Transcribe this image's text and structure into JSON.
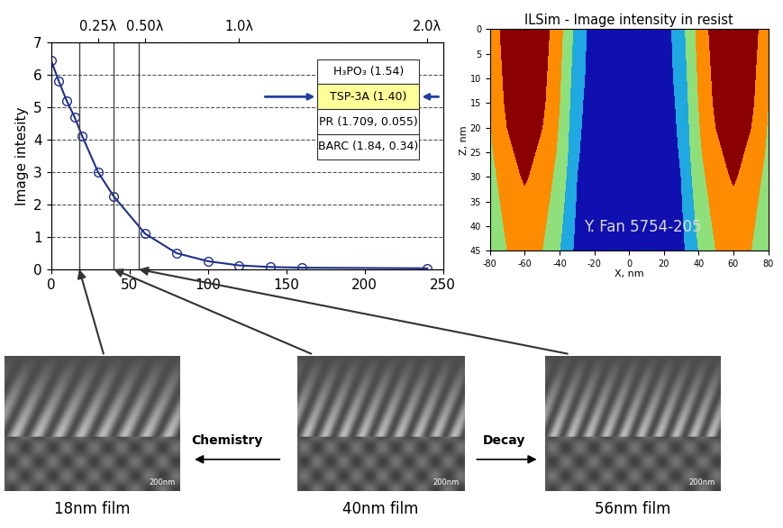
{
  "chart_data": [
    {
      "type": "line",
      "y_label": "Image intesity",
      "x": [
        0,
        5,
        10,
        15,
        20,
        30,
        40,
        60,
        80,
        100,
        120,
        140,
        160,
        240
      ],
      "values": [
        6.45,
        5.8,
        5.2,
        4.7,
        4.1,
        3.0,
        2.25,
        1.1,
        0.5,
        0.25,
        0.12,
        0.07,
        0.05,
        0.03
      ],
      "color": "#1f2f8f",
      "marker": "circle",
      "line_style": "solid",
      "xlim": [
        0,
        250
      ],
      "xticks": [
        0,
        50,
        100,
        150,
        200,
        250
      ],
      "ylim": [
        0,
        7
      ],
      "yticks": [
        0,
        1,
        2,
        3,
        4,
        5,
        6,
        7
      ],
      "grid": true,
      "top_ticks": [
        {
          "value": 30,
          "label": "0.25λ"
        },
        {
          "value": 60,
          "label": "0.50λ"
        },
        {
          "value": 120,
          "label": "1.0λ"
        },
        {
          "value": 240,
          "label": "2.0λ"
        }
      ],
      "vlines": [
        18,
        40,
        56
      ],
      "layers": [
        {
          "label": "H₃PO₃ (1.54)",
          "color": "#ffffff"
        },
        {
          "label": "TSP-3A (1.40)",
          "color": "#ffff99"
        },
        {
          "label": "PR (1.709, 0.055)",
          "color": "#ffffff"
        },
        {
          "label": "BARC (1.84, 0.34)",
          "color": "#ffffff"
        }
      ]
    },
    {
      "type": "contour",
      "title": "ILSim - Image intensity in resist",
      "x_label": "X, nm",
      "y_label": "Z, nm",
      "x": [
        -80,
        -70,
        -60,
        -50,
        -40,
        -30,
        -20,
        -10,
        0,
        10,
        20,
        30,
        40,
        50,
        60,
        70,
        80
      ],
      "y": [
        0,
        5,
        10,
        15,
        20,
        25,
        30,
        35,
        40,
        45
      ],
      "cells": [
        [
          3.3,
          4.5,
          4.8,
          4.5,
          3.3,
          1.6,
          0.5,
          0.2,
          0.1,
          0.2,
          0.5,
          1.6,
          3.3,
          4.5,
          4.8,
          4.5,
          3.3
        ],
        [
          3.2,
          4.4,
          4.8,
          4.4,
          3.2,
          1.5,
          0.5,
          0.2,
          0.1,
          0.2,
          0.5,
          1.5,
          3.2,
          4.4,
          4.8,
          4.4,
          3.2
        ],
        [
          3.1,
          4.3,
          4.7,
          4.3,
          3.1,
          1.4,
          0.5,
          0.2,
          0.1,
          0.2,
          0.5,
          1.4,
          3.1,
          4.3,
          4.7,
          4.3,
          3.1
        ],
        [
          3.0,
          4.2,
          4.6,
          4.2,
          3.0,
          1.3,
          0.4,
          0.2,
          0.1,
          0.2,
          0.4,
          1.3,
          3.0,
          4.2,
          4.6,
          4.2,
          3.0
        ],
        [
          2.9,
          4.0,
          4.5,
          4.0,
          2.9,
          1.2,
          0.4,
          0.2,
          0.1,
          0.2,
          0.4,
          1.2,
          2.9,
          4.0,
          4.5,
          4.0,
          2.9
        ],
        [
          2.8,
          3.8,
          4.3,
          3.8,
          2.8,
          1.1,
          0.4,
          0.2,
          0.1,
          0.2,
          0.4,
          1.1,
          2.8,
          3.8,
          4.3,
          3.8,
          2.8
        ],
        [
          2.6,
          3.6,
          4.1,
          3.6,
          2.6,
          1.0,
          0.3,
          0.2,
          0.1,
          0.2,
          0.3,
          1.0,
          2.6,
          3.6,
          4.1,
          3.6,
          2.6
        ],
        [
          2.4,
          3.4,
          3.8,
          3.4,
          2.4,
          0.9,
          0.3,
          0.2,
          0.1,
          0.2,
          0.3,
          0.9,
          2.4,
          3.4,
          3.8,
          3.4,
          2.4
        ],
        [
          2.2,
          3.2,
          3.6,
          3.2,
          2.2,
          0.8,
          0.3,
          0.2,
          0.1,
          0.2,
          0.3,
          0.8,
          2.2,
          3.2,
          3.6,
          3.2,
          2.2
        ],
        [
          2.0,
          3.0,
          3.4,
          3.0,
          2.0,
          0.7,
          0.3,
          0.2,
          0.1,
          0.2,
          0.3,
          0.7,
          2.0,
          3.0,
          3.4,
          3.0,
          2.0
        ]
      ],
      "levels": [
        0,
        1,
        2,
        3,
        4,
        5
      ],
      "colors": [
        "#1010b0",
        "#20a8e0",
        "#8fe07a",
        "#ff8c00",
        "#8b0000"
      ],
      "xlim": [
        -80,
        80
      ],
      "xticks": [
        -80,
        -60,
        -40,
        -20,
        0,
        20,
        40,
        60,
        80
      ],
      "ylim": [
        45,
        0
      ],
      "yticks": [
        0,
        5,
        10,
        15,
        20,
        25,
        30,
        35,
        40,
        45
      ],
      "annotation": "Y. Fan 5754-205"
    }
  ],
  "film_images": [
    {
      "caption": "18nm film",
      "x": 18,
      "scale_label": "200nm"
    },
    {
      "caption": "40nm film",
      "x": 40,
      "scale_label": "200nm"
    },
    {
      "caption": "56nm film",
      "x": 56,
      "scale_label": "200nm"
    }
  ],
  "arrow_labels": {
    "left": "Chemistry",
    "right": "Decay"
  }
}
